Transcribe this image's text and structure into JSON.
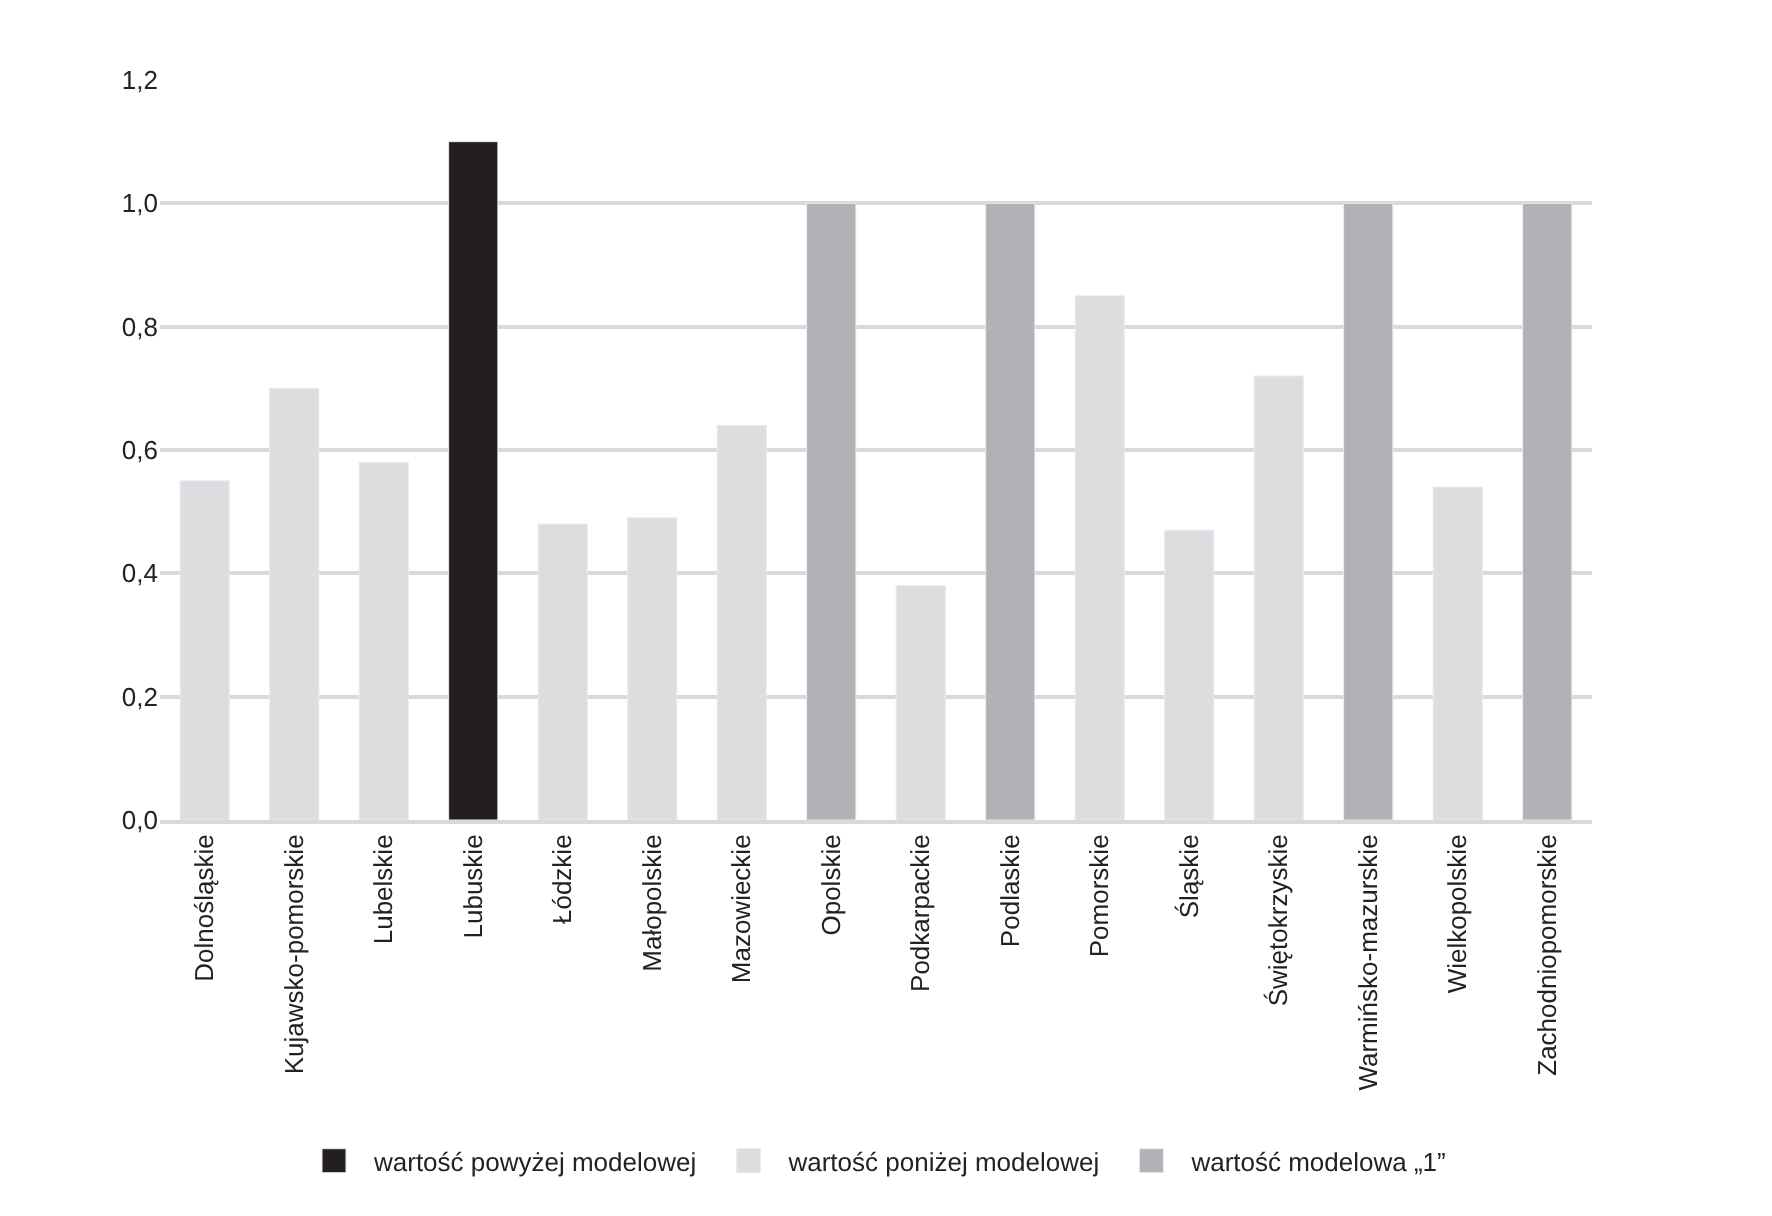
{
  "chart_data": {
    "type": "bar",
    "categories": [
      "Dolnośląskie",
      "Kujawsko-pomorskie",
      "Lubelskie",
      "Lubuskie",
      "Łódzkie",
      "Małopolskie",
      "Mazowieckie",
      "Opolskie",
      "Podkarpackie",
      "Podlaskie",
      "Pomorskie",
      "Śląskie",
      "Świętokrzyskie",
      "Warmińsko-mazurskie",
      "Wielkopolskie",
      "Zachodniopomorskie"
    ],
    "series": [
      {
        "name": "wartość powyżej modelowej",
        "color": "#231f20",
        "values": [
          null,
          null,
          null,
          1.1,
          null,
          null,
          null,
          null,
          null,
          null,
          null,
          null,
          null,
          null,
          null,
          null
        ]
      },
      {
        "name": "wartość poniżej modelowej",
        "color": "#dcdddf",
        "values": [
          0.55,
          0.7,
          0.58,
          null,
          0.48,
          0.49,
          0.64,
          null,
          0.38,
          null,
          0.85,
          0.47,
          0.72,
          null,
          0.54,
          null
        ]
      },
      {
        "name": "wartość modelowa „1”",
        "color": "#b1b2b6",
        "values": [
          null,
          null,
          null,
          null,
          null,
          null,
          null,
          1.0,
          null,
          1.0,
          null,
          null,
          null,
          1.0,
          null,
          1.0
        ]
      }
    ],
    "ylim": [
      0,
      1.2
    ],
    "yticks": [
      {
        "value": 0,
        "label": "0,0"
      },
      {
        "value": 0.2,
        "label": "0,2"
      },
      {
        "value": 0.4,
        "label": "0,4"
      },
      {
        "value": 0.6,
        "label": "0,6"
      },
      {
        "value": 0.8,
        "label": "0,8"
      },
      {
        "value": 1.0,
        "label": "1,0"
      },
      {
        "value": 1.2,
        "label": "1,2"
      }
    ],
    "grid": "y",
    "legend": "bottom"
  }
}
